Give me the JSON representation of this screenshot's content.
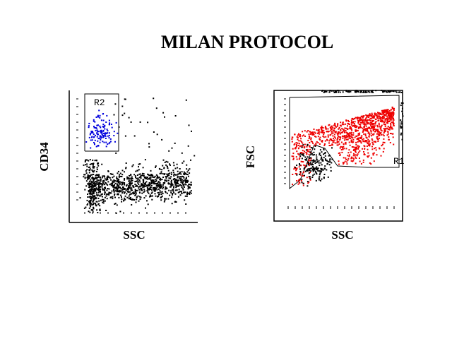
{
  "title": "MILAN PROTOCOL",
  "panels": [
    {
      "x_label": "SSC",
      "y_label": "CD34",
      "gate": "R2"
    },
    {
      "x_label": "SSC",
      "y_label": "FSC",
      "gate": "R1"
    }
  ]
}
